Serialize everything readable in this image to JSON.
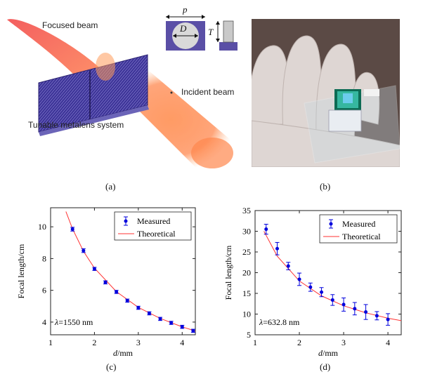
{
  "panels": {
    "a": {
      "label": "(a)",
      "focused_beam": "Focused beam",
      "incident_beam": "Incident beam",
      "system": "Tunable metalens system",
      "dim_p": "p",
      "dim_D": "D",
      "dim_T": "T"
    },
    "b": {
      "label": "(b)"
    },
    "c": {
      "label": "(c)"
    },
    "d": {
      "label": "(d)"
    }
  },
  "colors": {
    "measured": "#0000dd",
    "theoretical": "#ff3333",
    "lens": "#5a4fa6",
    "beam": "#ff7a3a"
  },
  "chart_data": [
    {
      "type": "scatter",
      "xlabel": "d/mm",
      "ylabel": "Focal length/cm",
      "annotation": "λ=1550 nm",
      "xlim": [
        1,
        4.3
      ],
      "ylim": [
        3.2,
        11.2
      ],
      "xticks": [
        1,
        2,
        3,
        4
      ],
      "yticks": [
        4,
        6,
        8,
        10
      ],
      "legend": "top-right",
      "grid": false,
      "series": [
        {
          "name": "Measured",
          "x": [
            1.5,
            1.75,
            2.0,
            2.25,
            2.5,
            2.75,
            3.0,
            3.25,
            3.5,
            3.75,
            4.0,
            4.25
          ],
          "y": [
            9.85,
            8.5,
            7.35,
            6.5,
            5.9,
            5.35,
            4.9,
            4.55,
            4.2,
            3.95,
            3.7,
            3.45
          ],
          "err": [
            0.12,
            0.12,
            0.1,
            0.1,
            0.1,
            0.1,
            0.1,
            0.1,
            0.1,
            0.1,
            0.1,
            0.1
          ]
        },
        {
          "name": "Theoretical",
          "curve": "y = 14.8 / x",
          "x": [
            1.35,
            1.5,
            1.75,
            2.0,
            2.5,
            3.0,
            3.5,
            4.0,
            4.3
          ],
          "y": [
            10.96,
            9.87,
            8.46,
            7.4,
            5.92,
            4.93,
            4.23,
            3.7,
            3.44
          ]
        }
      ]
    },
    {
      "type": "scatter",
      "xlabel": "d/mm",
      "ylabel": "Focal length/cm",
      "annotation": "λ=632.8 nm",
      "xlim": [
        1,
        4.3
      ],
      "ylim": [
        5,
        35
      ],
      "xticks": [
        1,
        2,
        3,
        4
      ],
      "yticks": [
        5,
        10,
        15,
        20,
        25,
        30,
        35
      ],
      "legend": "top-right",
      "grid": false,
      "series": [
        {
          "name": "Measured",
          "x": [
            1.25,
            1.5,
            1.75,
            2.0,
            2.25,
            2.5,
            2.75,
            3.0,
            3.25,
            3.5,
            3.75,
            4.0
          ],
          "y": [
            30.5,
            25.8,
            21.6,
            18.4,
            16.5,
            15.3,
            13.4,
            12.3,
            11.3,
            10.5,
            9.6,
            8.7
          ],
          "err": [
            1.2,
            1.5,
            0.9,
            1.5,
            1.0,
            1.1,
            1.3,
            1.6,
            1.5,
            1.8,
            1.0,
            1.4
          ]
        },
        {
          "name": "Theoretical",
          "curve": "y = 36 / x",
          "x": [
            1.2,
            1.5,
            2.0,
            2.5,
            3.0,
            3.5,
            4.0,
            4.3
          ],
          "y": [
            30.0,
            24.0,
            18.0,
            14.4,
            12.0,
            10.3,
            9.0,
            8.4
          ]
        }
      ]
    }
  ]
}
